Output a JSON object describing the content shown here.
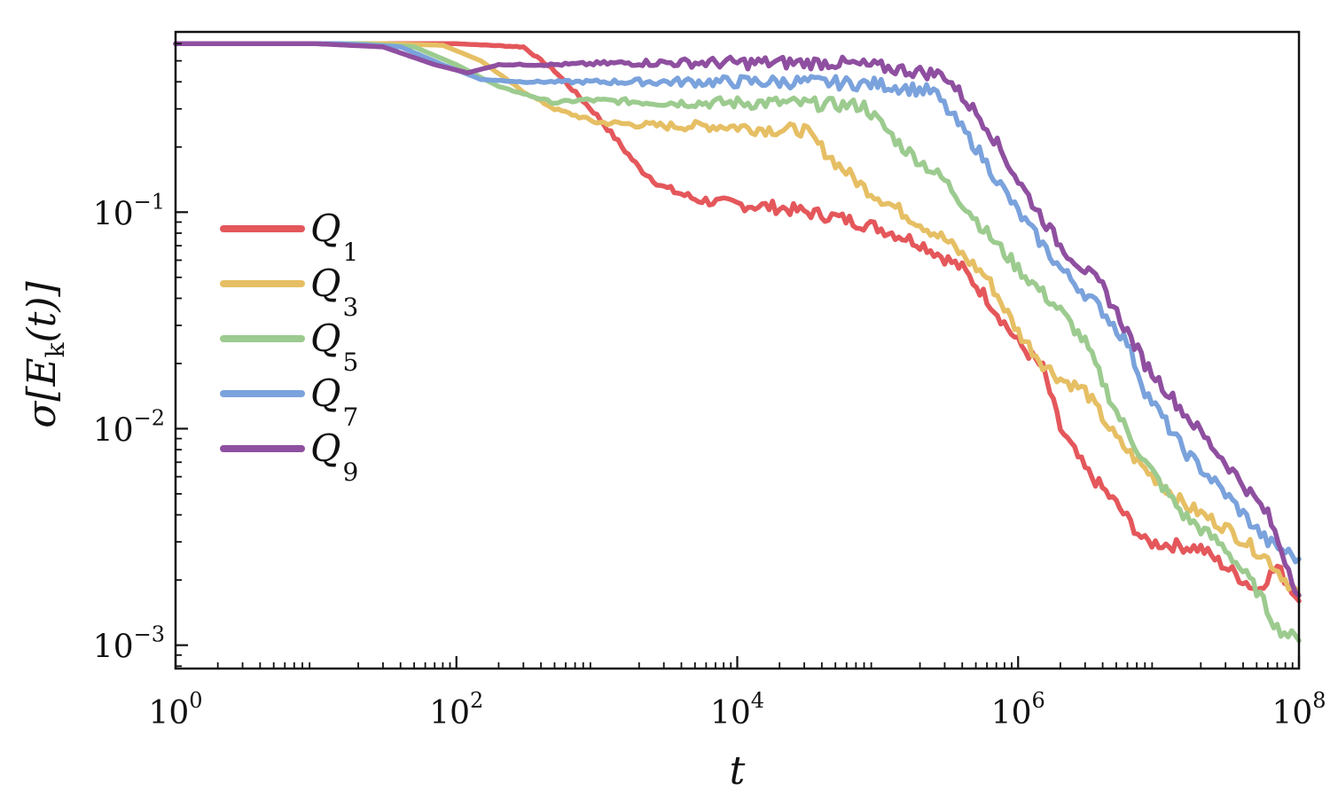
{
  "chart_data": {
    "type": "line",
    "xscale": "log",
    "yscale": "log",
    "xlim": [
      1,
      100000000
    ],
    "ylim": [
      0.00078,
      0.68
    ],
    "xlabel": "t",
    "ylabel": "σ[E_k(t)]",
    "ylabel_parts": {
      "prefix": "σ[E",
      "sub": "k",
      "suffix": "(t)]"
    },
    "x_ticks": [
      {
        "value": 1,
        "base": "10",
        "exp": "0"
      },
      {
        "value": 100,
        "base": "10",
        "exp": "2"
      },
      {
        "value": 10000,
        "base": "10",
        "exp": "4"
      },
      {
        "value": 1000000,
        "base": "10",
        "exp": "6"
      },
      {
        "value": 100000000,
        "base": "10",
        "exp": "8"
      }
    ],
    "y_ticks": [
      {
        "value": 0.1,
        "base": "10",
        "exp": "−1"
      },
      {
        "value": 0.01,
        "base": "10",
        "exp": "−2"
      },
      {
        "value": 0.001,
        "base": "10",
        "exp": "−3"
      }
    ],
    "legend_position": "center-left",
    "series": [
      {
        "name": "Q",
        "sub": "1",
        "color": "#e4575b",
        "points": [
          [
            1,
            0.6
          ],
          [
            100,
            0.6
          ],
          [
            300,
            0.58
          ],
          [
            500,
            0.45
          ],
          [
            1000,
            0.28
          ],
          [
            2000,
            0.16
          ],
          [
            3000,
            0.13
          ],
          [
            5000,
            0.115
          ],
          [
            8000,
            0.11
          ],
          [
            20000,
            0.105
          ],
          [
            50000,
            0.095
          ],
          [
            100000,
            0.085
          ],
          [
            200000,
            0.072
          ],
          [
            400000,
            0.055
          ],
          [
            600000,
            0.04
          ],
          [
            1000000,
            0.025
          ],
          [
            1500000,
            0.019
          ],
          [
            2000000,
            0.01
          ],
          [
            3000000,
            0.0065
          ],
          [
            5000000,
            0.0045
          ],
          [
            8000000,
            0.003
          ],
          [
            20000000,
            0.0028
          ],
          [
            50000000,
            0.0018
          ],
          [
            70000000,
            0.0023
          ],
          [
            100000000,
            0.0016
          ]
        ]
      },
      {
        "name": "Q",
        "sub": "3",
        "color": "#e6bf64",
        "points": [
          [
            1,
            0.6
          ],
          [
            30,
            0.6
          ],
          [
            80,
            0.59
          ],
          [
            150,
            0.5
          ],
          [
            300,
            0.36
          ],
          [
            500,
            0.3
          ],
          [
            1000,
            0.26
          ],
          [
            3000,
            0.25
          ],
          [
            8000,
            0.25
          ],
          [
            20000,
            0.24
          ],
          [
            30000,
            0.24
          ],
          [
            50000,
            0.17
          ],
          [
            80000,
            0.13
          ],
          [
            150000,
            0.1
          ],
          [
            300000,
            0.075
          ],
          [
            600000,
            0.05
          ],
          [
            1000000,
            0.028
          ],
          [
            1500000,
            0.02
          ],
          [
            2000000,
            0.017
          ],
          [
            3000000,
            0.015
          ],
          [
            5000000,
            0.009
          ],
          [
            8000000,
            0.0065
          ],
          [
            15000000,
            0.0045
          ],
          [
            30000000,
            0.0035
          ],
          [
            60000000,
            0.0025
          ],
          [
            100000000,
            0.0017
          ]
        ]
      },
      {
        "name": "Q",
        "sub": "5",
        "color": "#9ccb8f",
        "points": [
          [
            1,
            0.6
          ],
          [
            20,
            0.6
          ],
          [
            50,
            0.58
          ],
          [
            100,
            0.48
          ],
          [
            200,
            0.38
          ],
          [
            500,
            0.32
          ],
          [
            800,
            0.33
          ],
          [
            3000,
            0.32
          ],
          [
            20000,
            0.32
          ],
          [
            80000,
            0.31
          ],
          [
            150000,
            0.2
          ],
          [
            300000,
            0.14
          ],
          [
            600000,
            0.08
          ],
          [
            1000000,
            0.055
          ],
          [
            2000000,
            0.035
          ],
          [
            3000000,
            0.025
          ],
          [
            5000000,
            0.012
          ],
          [
            8000000,
            0.007
          ],
          [
            15000000,
            0.004
          ],
          [
            30000000,
            0.0028
          ],
          [
            50000000,
            0.0018
          ],
          [
            70000000,
            0.0012
          ],
          [
            100000000,
            0.00105
          ]
        ]
      },
      {
        "name": "Q",
        "sub": "7",
        "color": "#7aa2dc",
        "points": [
          [
            1,
            0.6
          ],
          [
            15,
            0.6
          ],
          [
            40,
            0.58
          ],
          [
            80,
            0.48
          ],
          [
            150,
            0.41
          ],
          [
            300,
            0.4
          ],
          [
            1000,
            0.4
          ],
          [
            30000,
            0.4
          ],
          [
            100000,
            0.39
          ],
          [
            250000,
            0.36
          ],
          [
            500000,
            0.2
          ],
          [
            1000000,
            0.1
          ],
          [
            2000000,
            0.055
          ],
          [
            4000000,
            0.035
          ],
          [
            6000000,
            0.025
          ],
          [
            8000000,
            0.015
          ],
          [
            15000000,
            0.008
          ],
          [
            30000000,
            0.005
          ],
          [
            60000000,
            0.003
          ],
          [
            100000000,
            0.0025
          ]
        ]
      },
      {
        "name": "Q",
        "sub": "9",
        "color": "#8f4fa0",
        "points": [
          [
            1,
            0.6
          ],
          [
            10,
            0.6
          ],
          [
            30,
            0.58
          ],
          [
            70,
            0.48
          ],
          [
            120,
            0.44
          ],
          [
            200,
            0.48
          ],
          [
            500,
            0.48
          ],
          [
            2000,
            0.49
          ],
          [
            50000,
            0.49
          ],
          [
            100000,
            0.47
          ],
          [
            300000,
            0.43
          ],
          [
            600000,
            0.25
          ],
          [
            1000000,
            0.14
          ],
          [
            2000000,
            0.07
          ],
          [
            4000000,
            0.045
          ],
          [
            8000000,
            0.02
          ],
          [
            15000000,
            0.012
          ],
          [
            30000000,
            0.007
          ],
          [
            60000000,
            0.004
          ],
          [
            100000000,
            0.0017
          ]
        ]
      }
    ]
  }
}
